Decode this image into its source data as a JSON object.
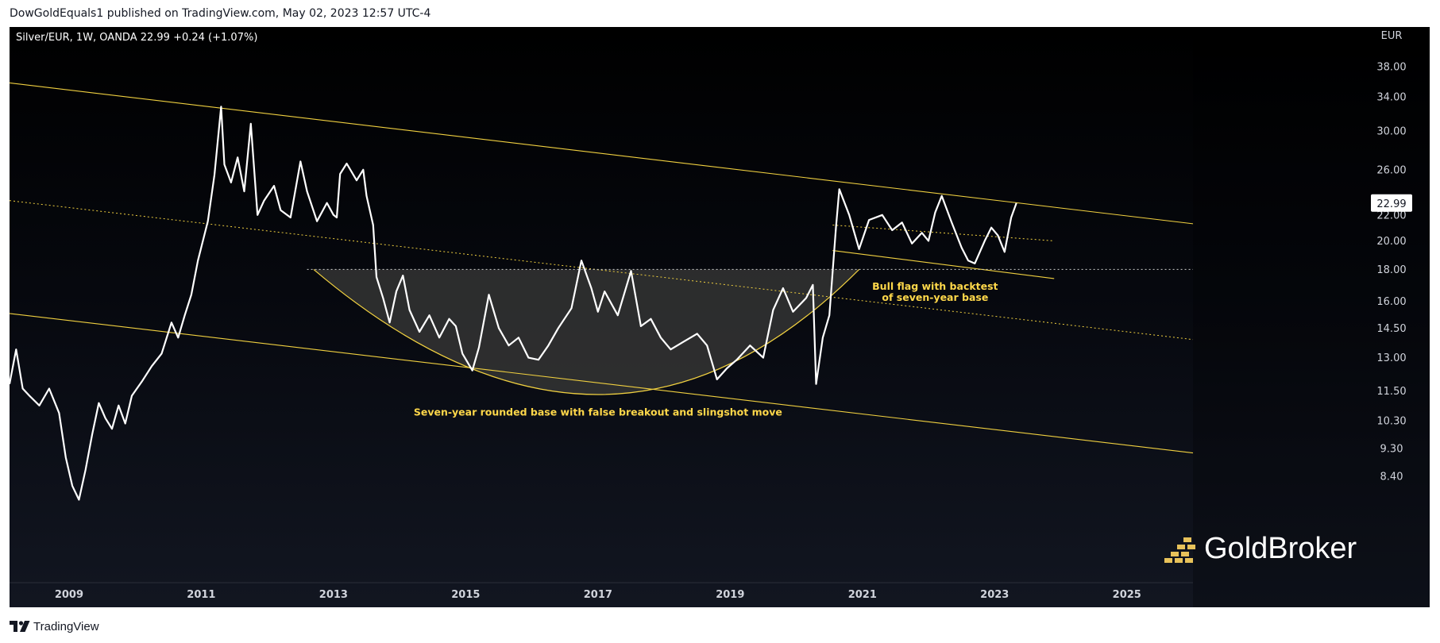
{
  "header": {
    "publish_info": "DowGoldEquals1 published on TradingView.com, May 02, 2023 12:57 UTC-4"
  },
  "footer": {
    "brand": "TradingView"
  },
  "watermark": {
    "text": "GoldBroker"
  },
  "colors": {
    "price_line": "#ffffff",
    "channel_line": "#f0d040",
    "annotation_text": "#ffd84a",
    "axis_text": "#d1d4dc",
    "base_fill": "#3a3a38"
  },
  "chart_data": {
    "type": "line",
    "symbol_info": "Silver/EUR, 1W, OANDA  22.99  +0.24 (+1.07%)",
    "y_unit": "EUR",
    "y_scale": "log",
    "xlim": [
      2008.1,
      2026.0
    ],
    "ylim": [
      7.6,
      44
    ],
    "x_ticks": [
      "2009",
      "2011",
      "2013",
      "2015",
      "2017",
      "2019",
      "2021",
      "2023",
      "2025"
    ],
    "y_ticks": [
      "38.00",
      "34.00",
      "30.00",
      "26.00",
      "22.00",
      "20.00",
      "18.00",
      "16.00",
      "14.50",
      "13.00",
      "11.50",
      "10.30",
      "9.30",
      "8.40"
    ],
    "last_price": {
      "label": "22.99",
      "value": 22.99
    },
    "series": [
      {
        "points": [
          [
            2008.1,
            11.8
          ],
          [
            2008.2,
            13.4
          ],
          [
            2008.3,
            11.6
          ],
          [
            2008.4,
            11.3
          ],
          [
            2008.55,
            10.9
          ],
          [
            2008.7,
            11.6
          ],
          [
            2008.85,
            10.6
          ],
          [
            2008.95,
            9.0
          ],
          [
            2009.05,
            8.1
          ],
          [
            2009.15,
            7.7
          ],
          [
            2009.25,
            8.6
          ],
          [
            2009.35,
            9.8
          ],
          [
            2009.45,
            11.0
          ],
          [
            2009.55,
            10.4
          ],
          [
            2009.65,
            10.0
          ],
          [
            2009.75,
            10.9
          ],
          [
            2009.85,
            10.2
          ],
          [
            2009.95,
            11.3
          ],
          [
            2010.1,
            11.9
          ],
          [
            2010.25,
            12.6
          ],
          [
            2010.4,
            13.2
          ],
          [
            2010.55,
            14.8
          ],
          [
            2010.65,
            14.0
          ],
          [
            2010.75,
            15.2
          ],
          [
            2010.85,
            16.4
          ],
          [
            2010.95,
            18.6
          ],
          [
            2011.1,
            21.5
          ],
          [
            2011.2,
            25.5
          ],
          [
            2011.3,
            32.8
          ],
          [
            2011.35,
            26.5
          ],
          [
            2011.45,
            24.8
          ],
          [
            2011.55,
            27.2
          ],
          [
            2011.65,
            24.0
          ],
          [
            2011.75,
            30.8
          ],
          [
            2011.85,
            22.0
          ],
          [
            2011.95,
            23.2
          ],
          [
            2012.1,
            24.5
          ],
          [
            2012.2,
            22.4
          ],
          [
            2012.35,
            21.8
          ],
          [
            2012.5,
            26.8
          ],
          [
            2012.6,
            24.0
          ],
          [
            2012.75,
            21.5
          ],
          [
            2012.9,
            23.0
          ],
          [
            2013.0,
            22.0
          ],
          [
            2013.05,
            21.8
          ],
          [
            2013.1,
            25.6
          ],
          [
            2013.2,
            26.6
          ],
          [
            2013.35,
            25.0
          ],
          [
            2013.45,
            26.0
          ],
          [
            2013.5,
            23.6
          ],
          [
            2013.6,
            21.2
          ],
          [
            2013.65,
            17.5
          ],
          [
            2013.75,
            16.2
          ],
          [
            2013.85,
            14.8
          ],
          [
            2013.95,
            16.6
          ],
          [
            2014.05,
            17.6
          ],
          [
            2014.15,
            15.5
          ],
          [
            2014.3,
            14.3
          ],
          [
            2014.45,
            15.2
          ],
          [
            2014.6,
            14.0
          ],
          [
            2014.75,
            15.0
          ],
          [
            2014.85,
            14.6
          ],
          [
            2014.95,
            13.2
          ],
          [
            2015.1,
            12.4
          ],
          [
            2015.2,
            13.5
          ],
          [
            2015.35,
            16.4
          ],
          [
            2015.5,
            14.5
          ],
          [
            2015.65,
            13.6
          ],
          [
            2015.8,
            14.0
          ],
          [
            2015.95,
            13.0
          ],
          [
            2016.1,
            12.9
          ],
          [
            2016.25,
            13.6
          ],
          [
            2016.4,
            14.5
          ],
          [
            2016.6,
            15.6
          ],
          [
            2016.75,
            18.6
          ],
          [
            2016.9,
            16.8
          ],
          [
            2017.0,
            15.4
          ],
          [
            2017.1,
            16.6
          ],
          [
            2017.3,
            15.2
          ],
          [
            2017.5,
            17.9
          ],
          [
            2017.65,
            14.6
          ],
          [
            2017.8,
            15.0
          ],
          [
            2017.95,
            14.0
          ],
          [
            2018.1,
            13.4
          ],
          [
            2018.3,
            13.8
          ],
          [
            2018.5,
            14.2
          ],
          [
            2018.65,
            13.6
          ],
          [
            2018.8,
            12.0
          ],
          [
            2018.95,
            12.5
          ],
          [
            2019.1,
            12.9
          ],
          [
            2019.3,
            13.6
          ],
          [
            2019.5,
            13.0
          ],
          [
            2019.65,
            15.5
          ],
          [
            2019.8,
            16.8
          ],
          [
            2019.95,
            15.4
          ],
          [
            2020.15,
            16.2
          ],
          [
            2020.25,
            17.0
          ],
          [
            2020.3,
            11.8
          ],
          [
            2020.4,
            14.0
          ],
          [
            2020.5,
            15.2
          ],
          [
            2020.6,
            21.0
          ],
          [
            2020.65,
            24.2
          ],
          [
            2020.8,
            22.0
          ],
          [
            2020.95,
            19.4
          ],
          [
            2021.1,
            21.6
          ],
          [
            2021.3,
            22.0
          ],
          [
            2021.45,
            20.8
          ],
          [
            2021.6,
            21.4
          ],
          [
            2021.75,
            19.8
          ],
          [
            2021.9,
            20.6
          ],
          [
            2022.0,
            20.0
          ],
          [
            2022.1,
            22.2
          ],
          [
            2022.2,
            23.6
          ],
          [
            2022.35,
            21.4
          ],
          [
            2022.5,
            19.5
          ],
          [
            2022.6,
            18.6
          ],
          [
            2022.7,
            18.4
          ],
          [
            2022.85,
            20.0
          ],
          [
            2022.95,
            21.0
          ],
          [
            2023.05,
            20.4
          ],
          [
            2023.15,
            19.2
          ],
          [
            2023.25,
            21.8
          ],
          [
            2023.33,
            22.99
          ]
        ]
      }
    ],
    "trend_lines": [
      {
        "style": "solid",
        "x": [
          2008.1,
          2026.0
        ],
        "y": [
          35.8,
          21.3
        ]
      },
      {
        "style": "dotted",
        "x": [
          2008.1,
          2026.0
        ],
        "y": [
          23.2,
          13.9
        ]
      },
      {
        "style": "solid",
        "x": [
          2008.1,
          2026.0
        ],
        "y": [
          15.3,
          9.15
        ]
      },
      {
        "style": "dotted",
        "x": [
          2020.55,
          2023.9
        ],
        "y": [
          21.2,
          20.0
        ]
      },
      {
        "style": "solid",
        "x": [
          2020.55,
          2023.9
        ],
        "y": [
          19.3,
          17.4
        ]
      },
      {
        "style": "dotted",
        "x": [
          2012.6,
          2026.0
        ],
        "y": [
          18.0,
          18.0
        ]
      }
    ],
    "rounded_base": {
      "start": [
        2012.7,
        18.0
      ],
      "bottom": [
        2017.0,
        11.35
      ],
      "end": [
        2020.95,
        18.0
      ]
    },
    "annotations": [
      {
        "lines": [
          "Seven-year rounded base with false breakout and slingshot move"
        ],
        "x": 2017.0,
        "y": 10.5
      },
      {
        "lines": [
          "Bull flag with backtest",
          "of seven-year base"
        ],
        "x": 2022.1,
        "y": 16.7
      }
    ]
  }
}
